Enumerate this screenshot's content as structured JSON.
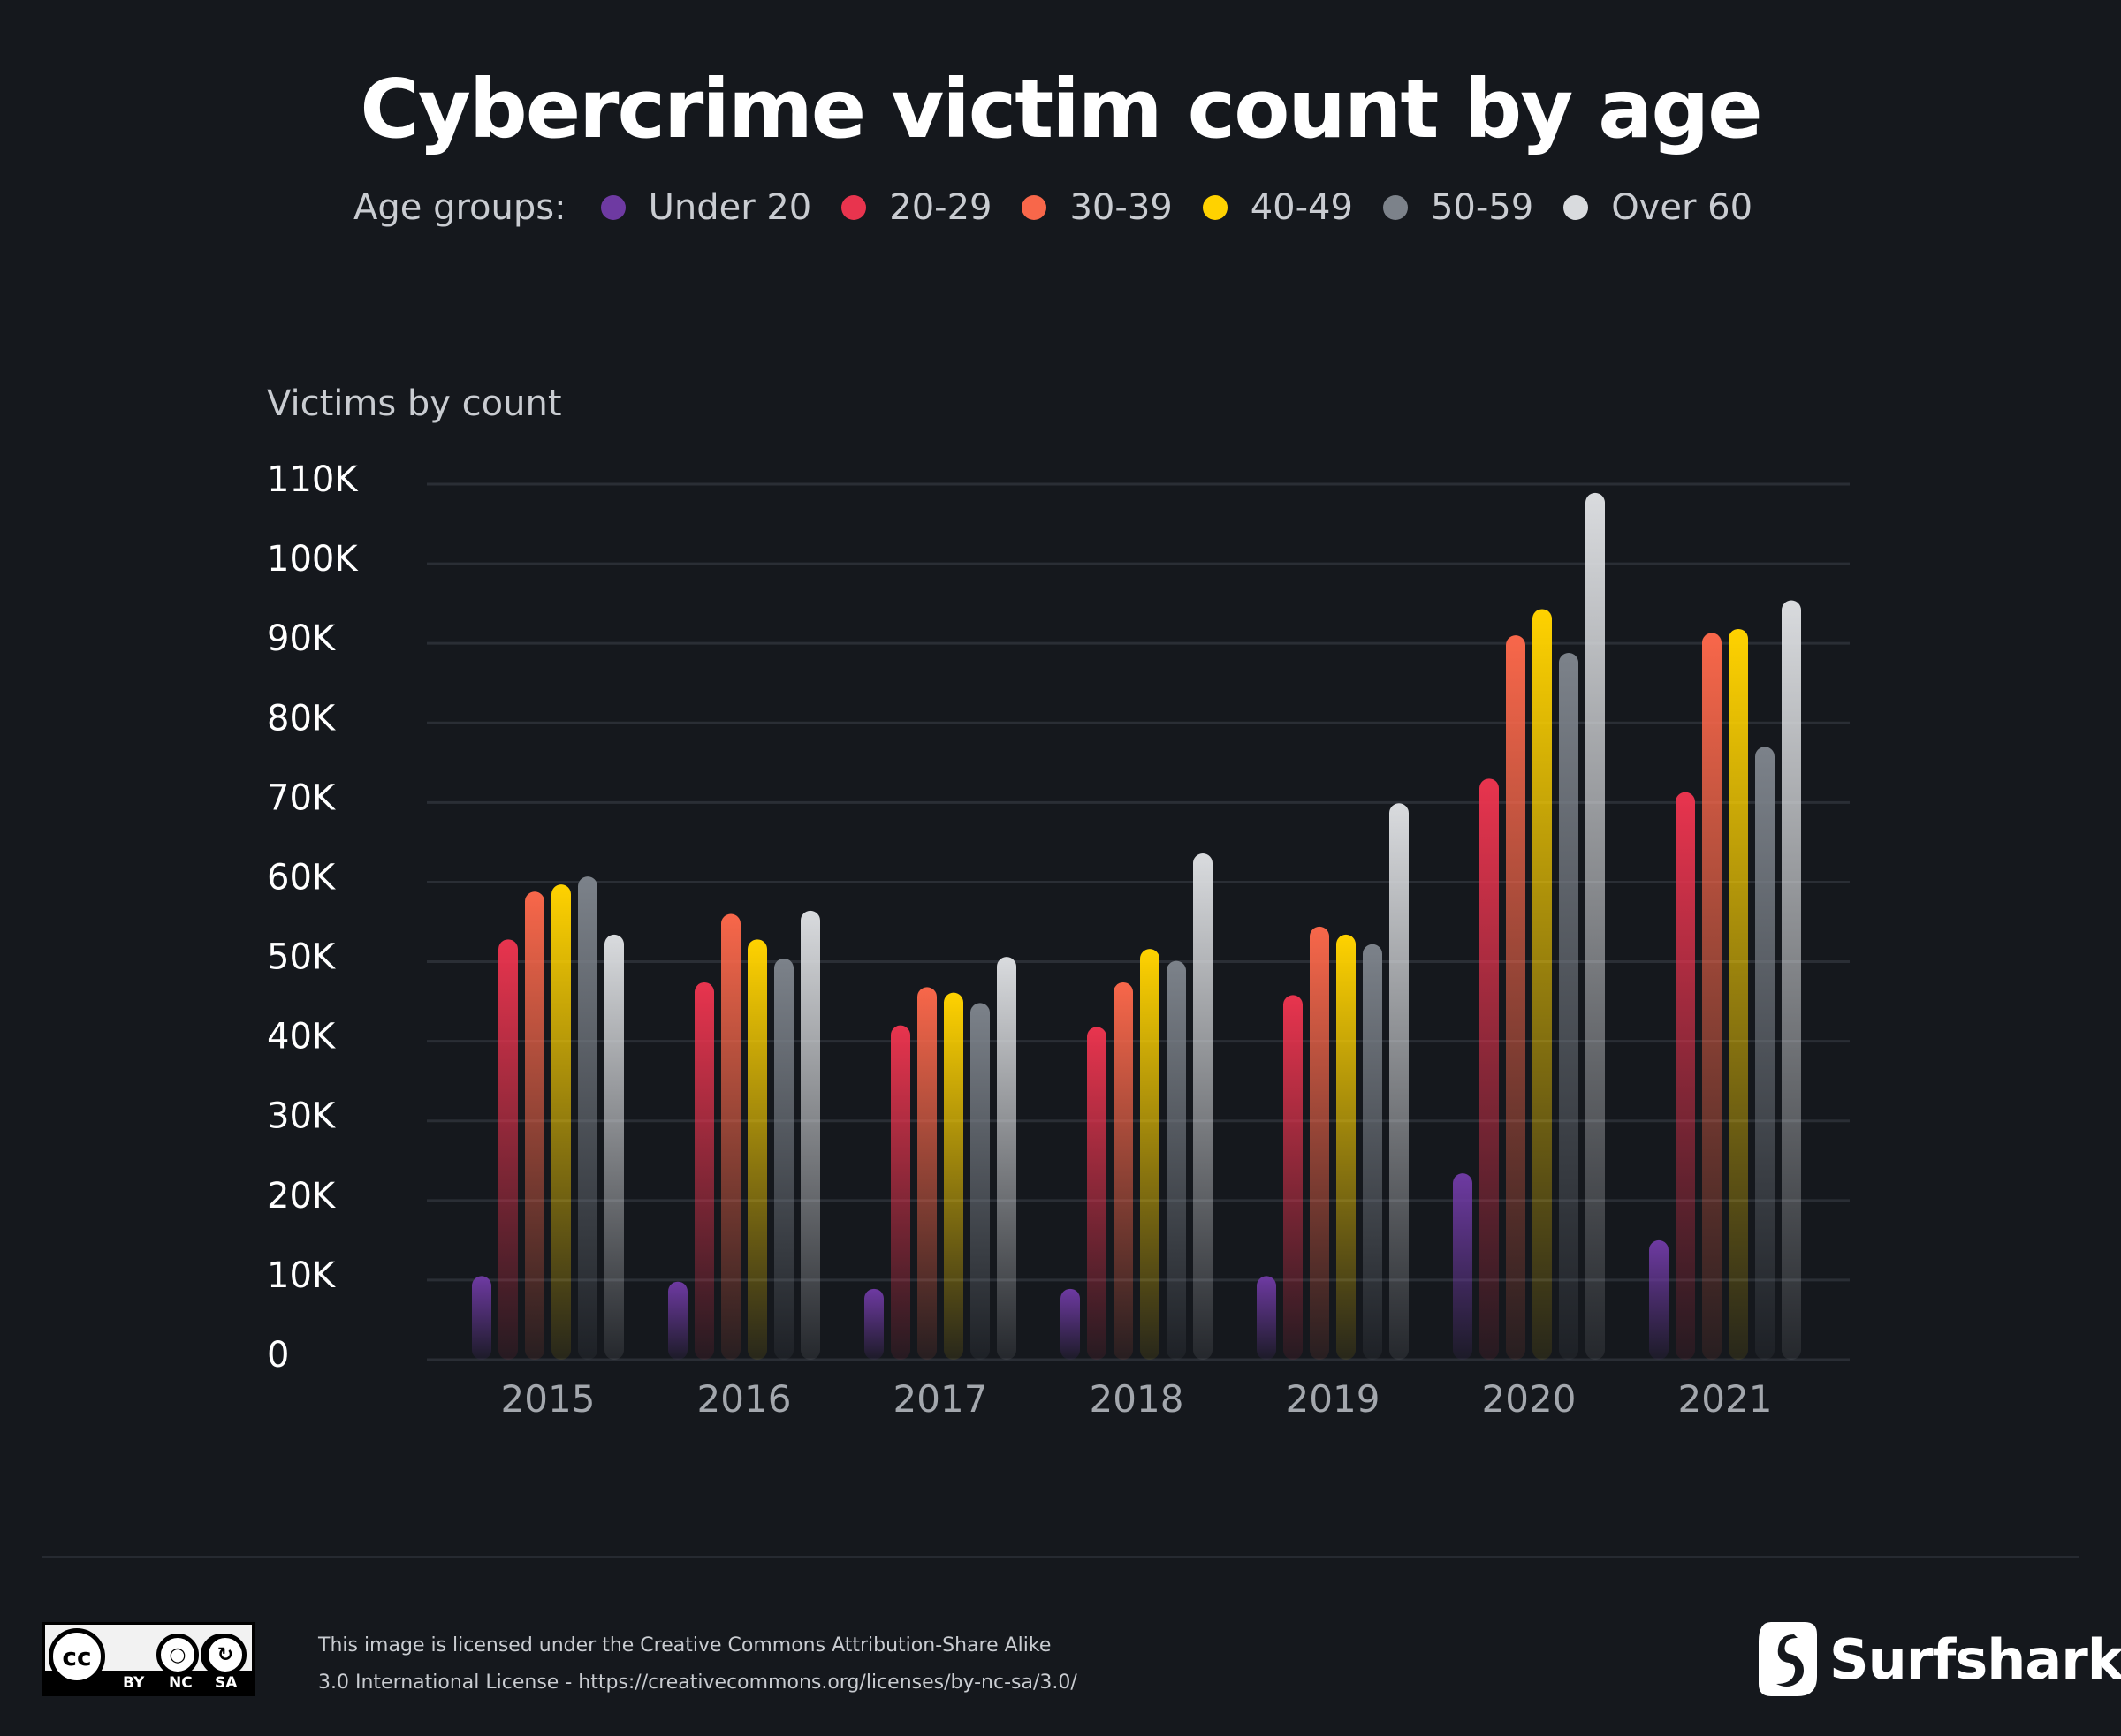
{
  "title": "Cybercrime victim count by age",
  "legend": {
    "label": "Age groups:"
  },
  "chart_data": {
    "type": "bar",
    "title": "Cybercrime victim count by age",
    "ylabel": "Victims by count",
    "xlabel": "",
    "ylim": [
      0,
      110000
    ],
    "yticks": [
      "0",
      "10K",
      "20K",
      "30K",
      "40K",
      "50K",
      "60K",
      "70K",
      "80K",
      "90K",
      "100K",
      "110K"
    ],
    "categories": [
      "2015",
      "2016",
      "2017",
      "2018",
      "2019",
      "2020",
      "2021"
    ],
    "grid": true,
    "legend_position": "top",
    "series": [
      {
        "name": "Under 20",
        "color": "#6e3aa2",
        "values": [
          10500,
          9800,
          8900,
          8900,
          10500,
          23400,
          15000
        ]
      },
      {
        "name": "20-29",
        "color": "#e8344e",
        "values": [
          52800,
          47400,
          42000,
          41800,
          45800,
          73000,
          71300
        ]
      },
      {
        "name": "30-39",
        "color": "#f8674a",
        "values": [
          58800,
          56000,
          46800,
          47400,
          54400,
          91000,
          91300
        ]
      },
      {
        "name": "40-49",
        "color": "#ffd200",
        "values": [
          59700,
          52800,
          46100,
          51600,
          53400,
          94300,
          91800
        ]
      },
      {
        "name": "50-59",
        "color": "#7c828a",
        "values": [
          60700,
          50400,
          44800,
          50100,
          52200,
          88800,
          77000
        ]
      },
      {
        "name": "Over 60",
        "color": "#d9dbde",
        "values": [
          53400,
          56400,
          50600,
          63600,
          69900,
          108900,
          95400
        ]
      }
    ]
  },
  "footer": {
    "license_line1": "This image is licensed under the Creative Commons Attribution-Share Alike",
    "license_line2": "3.0 International License - https://creativecommons.org/licenses/by-nc-sa/3.0/",
    "cc_badge": {
      "main": "cc",
      "tags": [
        "BY",
        "NC",
        "SA"
      ]
    },
    "brand": "Surfshark",
    "brand_mark": "®"
  }
}
